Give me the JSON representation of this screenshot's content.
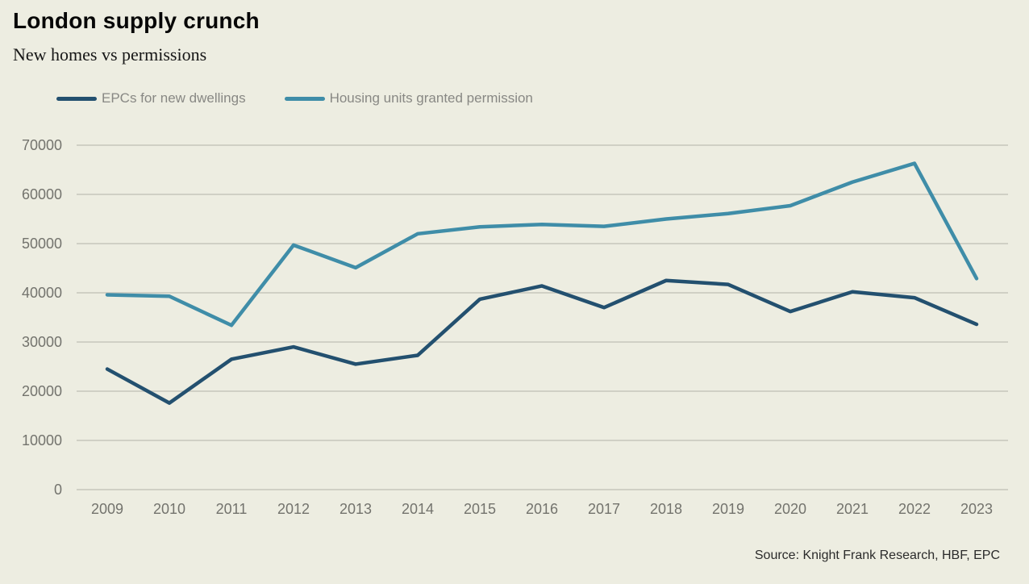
{
  "header": {
    "title": "London supply crunch",
    "subtitle": "New homes vs permissions"
  },
  "legend": [
    {
      "label": "EPCs for new dwellings"
    },
    {
      "label": "Housing units granted permission"
    }
  ],
  "footer": {
    "source": "Source: Knight Frank Research, HBF, EPC"
  },
  "colors": {
    "background": "#EDEDE1",
    "gridline": "#C6C6BC",
    "axis_text": "#73736D",
    "legend_text": "#888884",
    "navy": "#23506F",
    "teal": "#3F8DA8"
  },
  "chart_data": {
    "type": "line",
    "title": "London supply crunch",
    "subtitle": "New homes vs permissions",
    "x": [
      "2009",
      "2010",
      "2011",
      "2012",
      "2013",
      "2014",
      "2015",
      "2016",
      "2017",
      "2018",
      "2019",
      "2020",
      "2021",
      "2022",
      "2023"
    ],
    "xlabel": "",
    "ylabel": "",
    "ylim": [
      0,
      70000
    ],
    "y_ticks": [
      0,
      10000,
      20000,
      30000,
      40000,
      50000,
      60000,
      70000
    ],
    "grid": "horizontal",
    "legend_position": "top-left",
    "series": [
      {
        "name": "EPCs for new dwellings",
        "color": "#23506F",
        "values": [
          24500,
          17600,
          26500,
          29000,
          25500,
          27300,
          38700,
          41400,
          37000,
          42500,
          41700,
          36200,
          40200,
          39000,
          33600
        ]
      },
      {
        "name": "Housing units granted permission",
        "color": "#3F8DA8",
        "values": [
          39600,
          39300,
          33400,
          49700,
          45100,
          52000,
          53400,
          53900,
          53500,
          55000,
          56100,
          57700,
          62500,
          66300,
          42900
        ]
      }
    ],
    "source": "Source: Knight Frank Research, HBF, EPC"
  }
}
